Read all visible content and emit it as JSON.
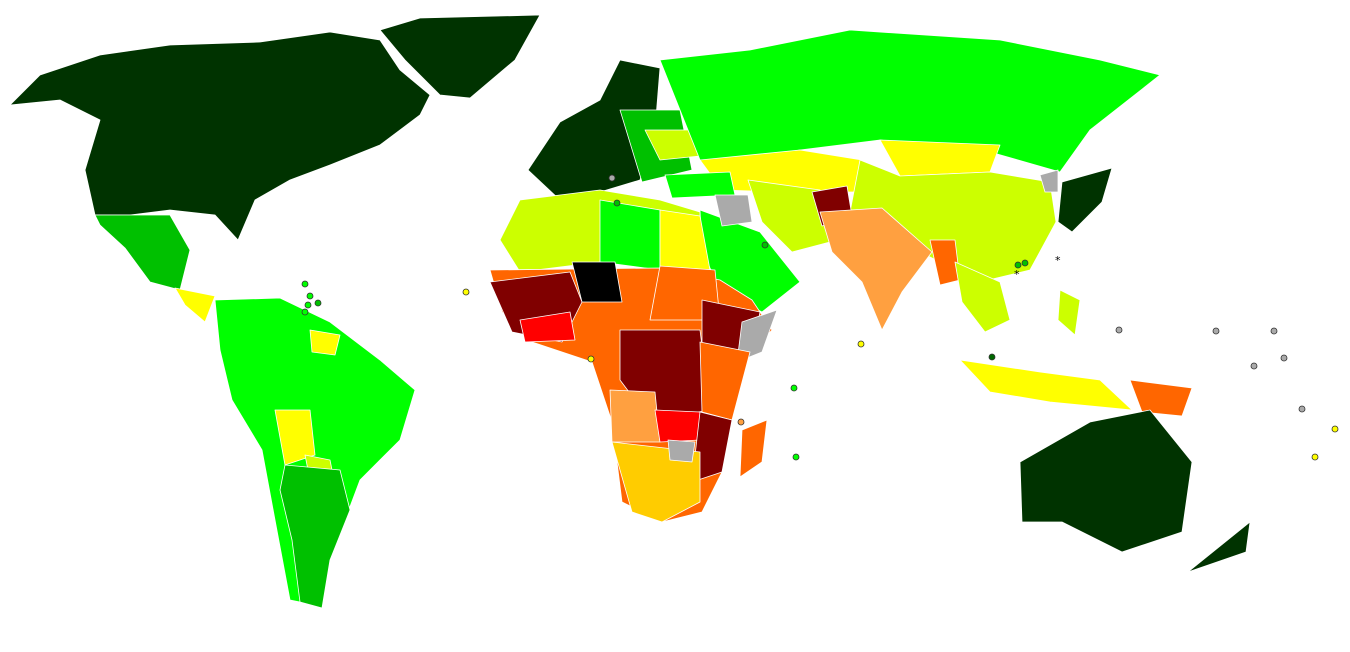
{
  "map": {
    "palette": {
      "very_high_1": "#003300",
      "very_high_2": "#006600",
      "high_1": "#00c000",
      "high_2": "#00ff00",
      "medium_1": "#ccff00",
      "medium_2": "#ffff00",
      "medium_3": "#ffcc00",
      "low_1": "#ffa040",
      "low_2": "#ff6600",
      "low_3": "#ff0000",
      "low_4": "#800000",
      "lowest": "#000000",
      "no_data": "#aaaaaa",
      "ocean": "#ffffff",
      "border": "#ffffff"
    },
    "markers": [
      {
        "symbol": "*"
      },
      {
        "symbol": "*"
      }
    ]
  }
}
